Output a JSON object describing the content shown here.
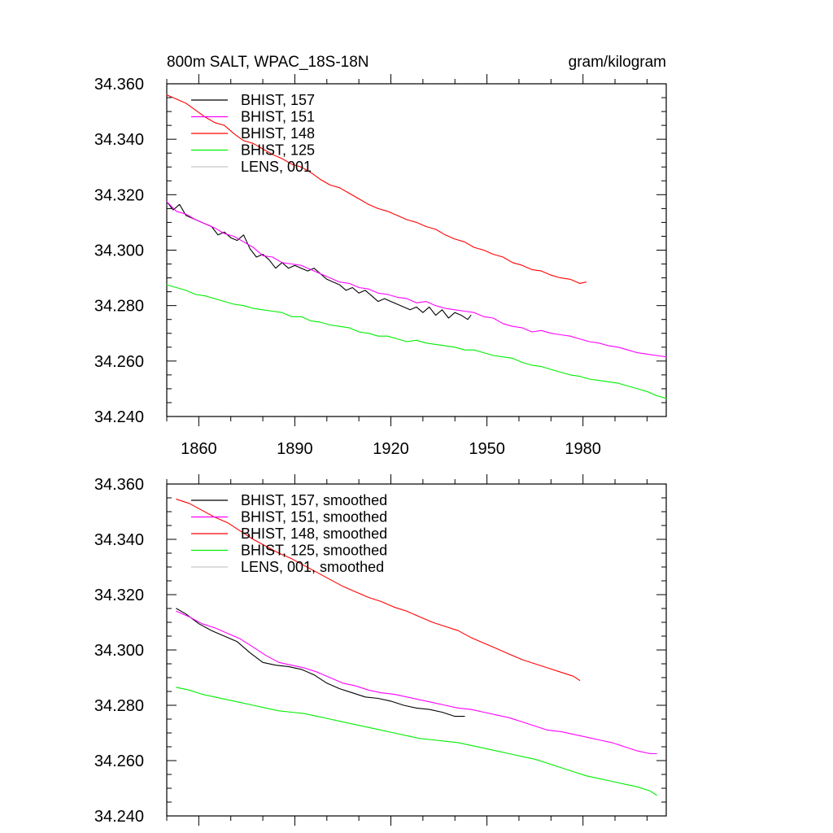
{
  "chart_data": [
    {
      "type": "line",
      "title_left": "800m SALT, WPAC_18S-18N",
      "title_right": "gram/kilogram",
      "xlabel": "",
      "ylabel": "",
      "xlim": [
        1850,
        2006
      ],
      "ylim": [
        34.24,
        34.36
      ],
      "x_ticks": [
        1860,
        1890,
        1920,
        1950,
        1980
      ],
      "y_ticks": [
        "34.240",
        "34.260",
        "34.280",
        "34.300",
        "34.320",
        "34.340",
        "34.360"
      ],
      "grid": false,
      "legend_position": "top-left",
      "series": [
        {
          "name": "BHIST, 157",
          "color": "#000000",
          "x": [
            1850,
            1852,
            1854,
            1856,
            1858,
            1860,
            1862,
            1864,
            1866,
            1868,
            1870,
            1872,
            1874,
            1876,
            1878,
            1880,
            1882,
            1884,
            1886,
            1888,
            1890,
            1892,
            1894,
            1896,
            1898,
            1900,
            1902,
            1904,
            1906,
            1908,
            1910,
            1912,
            1914,
            1916,
            1918,
            1920,
            1922,
            1924,
            1926,
            1928,
            1930,
            1932,
            1934,
            1936,
            1938,
            1940,
            1942,
            1944,
            1945
          ],
          "values": [
            34.3175,
            34.3145,
            34.3165,
            34.3125,
            34.3115,
            34.3105,
            34.3095,
            34.3085,
            34.3055,
            34.3065,
            34.3045,
            34.3035,
            34.3055,
            34.3005,
            34.2975,
            34.2985,
            34.2965,
            34.2935,
            34.2955,
            34.2935,
            34.2945,
            34.2935,
            34.2925,
            34.2935,
            34.2915,
            34.2895,
            34.2885,
            34.2875,
            34.2855,
            34.2865,
            34.2845,
            34.2855,
            34.2835,
            34.2815,
            34.2825,
            34.2815,
            34.2805,
            34.2795,
            34.2785,
            34.2795,
            34.2775,
            34.2795,
            34.2765,
            34.2785,
            34.2755,
            34.2775,
            34.2765,
            34.275,
            34.2765
          ]
        },
        {
          "name": "BHIST, 151",
          "color": "#ff00ff",
          "x": [
            1850,
            1853,
            1856,
            1859,
            1862,
            1865,
            1868,
            1871,
            1874,
            1877,
            1880,
            1883,
            1886,
            1889,
            1892,
            1895,
            1898,
            1901,
            1904,
            1907,
            1910,
            1913,
            1916,
            1919,
            1922,
            1925,
            1928,
            1931,
            1934,
            1937,
            1940,
            1943,
            1946,
            1949,
            1952,
            1955,
            1958,
            1961,
            1964,
            1967,
            1970,
            1973,
            1976,
            1979,
            1982,
            1985,
            1988,
            1991,
            1994,
            1997,
            2000,
            2003,
            2006
          ],
          "values": [
            34.3175,
            34.314,
            34.313,
            34.311,
            34.3095,
            34.308,
            34.306,
            34.305,
            34.303,
            34.301,
            34.298,
            34.2975,
            34.2955,
            34.295,
            34.2945,
            34.293,
            34.2915,
            34.29,
            34.2885,
            34.288,
            34.2865,
            34.286,
            34.2845,
            34.284,
            34.283,
            34.2825,
            34.281,
            34.2815,
            34.28,
            34.279,
            34.2785,
            34.278,
            34.2775,
            34.276,
            34.2755,
            34.2735,
            34.2725,
            34.272,
            34.2705,
            34.271,
            34.27,
            34.2695,
            34.269,
            34.268,
            34.267,
            34.2665,
            34.2655,
            34.265,
            34.264,
            34.263,
            34.2625,
            34.262,
            34.2615
          ]
        },
        {
          "name": "BHIST, 148",
          "color": "#ff0000",
          "x": [
            1850,
            1853,
            1856,
            1859,
            1862,
            1865,
            1868,
            1871,
            1874,
            1877,
            1880,
            1883,
            1886,
            1889,
            1892,
            1895,
            1898,
            1901,
            1904,
            1907,
            1910,
            1913,
            1916,
            1919,
            1922,
            1925,
            1928,
            1931,
            1934,
            1937,
            1940,
            1943,
            1946,
            1949,
            1952,
            1955,
            1958,
            1961,
            1964,
            1967,
            1970,
            1973,
            1976,
            1979,
            1981
          ],
          "values": [
            34.356,
            34.3545,
            34.353,
            34.3505,
            34.348,
            34.346,
            34.345,
            34.342,
            34.3395,
            34.3385,
            34.3365,
            34.3345,
            34.333,
            34.331,
            34.33,
            34.328,
            34.3255,
            34.3235,
            34.3225,
            34.3205,
            34.3185,
            34.3165,
            34.315,
            34.314,
            34.3125,
            34.311,
            34.31,
            34.3085,
            34.3075,
            34.3055,
            34.304,
            34.303,
            34.301,
            34.3,
            34.2985,
            34.2975,
            34.2955,
            34.2945,
            34.293,
            34.2925,
            34.291,
            34.29,
            34.2895,
            34.288,
            34.2885
          ]
        },
        {
          "name": "BHIST, 125",
          "color": "#00ee00",
          "x": [
            1850,
            1853,
            1856,
            1859,
            1862,
            1865,
            1868,
            1871,
            1874,
            1877,
            1880,
            1883,
            1886,
            1889,
            1892,
            1895,
            1898,
            1901,
            1904,
            1907,
            1910,
            1913,
            1916,
            1919,
            1922,
            1925,
            1928,
            1931,
            1934,
            1937,
            1940,
            1943,
            1946,
            1949,
            1952,
            1955,
            1958,
            1961,
            1964,
            1967,
            1970,
            1973,
            1976,
            1979,
            1982,
            1985,
            1988,
            1991,
            1994,
            1997,
            2000,
            2003,
            2006
          ],
          "values": [
            34.2875,
            34.2865,
            34.2855,
            34.284,
            34.2835,
            34.2825,
            34.2815,
            34.2805,
            34.28,
            34.279,
            34.2785,
            34.278,
            34.2775,
            34.276,
            34.276,
            34.2745,
            34.274,
            34.273,
            34.2725,
            34.272,
            34.2705,
            34.27,
            34.269,
            34.269,
            34.268,
            34.267,
            34.2675,
            34.2665,
            34.266,
            34.2655,
            34.265,
            34.264,
            34.264,
            34.263,
            34.262,
            34.2615,
            34.261,
            34.2595,
            34.2585,
            34.258,
            34.257,
            34.256,
            34.255,
            34.2545,
            34.2535,
            34.253,
            34.2525,
            34.252,
            34.251,
            34.25,
            34.249,
            34.2475,
            34.2465
          ]
        },
        {
          "name": "LENS, 001",
          "color": "#c8c8c8",
          "x": [],
          "values": []
        }
      ]
    },
    {
      "type": "line",
      "title_left": "",
      "title_right": "",
      "xlabel": "",
      "ylabel": "",
      "xlim": [
        1850,
        2006
      ],
      "ylim": [
        34.24,
        34.36
      ],
      "x_ticks": [
        1860,
        1890,
        1920,
        1950,
        1980
      ],
      "y_ticks": [
        "34.240",
        "34.260",
        "34.280",
        "34.300",
        "34.320",
        "34.340",
        "34.360"
      ],
      "grid": false,
      "legend_position": "top-left",
      "series": [
        {
          "name": "BHIST, 157, smoothed",
          "color": "#000000",
          "x": [
            1853,
            1856,
            1860,
            1864,
            1868,
            1872,
            1876,
            1880,
            1884,
            1888,
            1892,
            1896,
            1900,
            1904,
            1908,
            1912,
            1916,
            1920,
            1924,
            1928,
            1932,
            1936,
            1940,
            1943
          ],
          "values": [
            34.315,
            34.313,
            34.3095,
            34.307,
            34.305,
            34.303,
            34.299,
            34.2955,
            34.2945,
            34.294,
            34.293,
            34.291,
            34.288,
            34.286,
            34.2845,
            34.283,
            34.2825,
            34.2815,
            34.28,
            34.279,
            34.2785,
            34.2775,
            34.276,
            34.276
          ]
        },
        {
          "name": "BHIST, 151, smoothed",
          "color": "#ff00ff",
          "x": [
            1853,
            1857,
            1861,
            1865,
            1869,
            1873,
            1877,
            1881,
            1885,
            1889,
            1893,
            1897,
            1901,
            1905,
            1909,
            1913,
            1917,
            1921,
            1925,
            1929,
            1933,
            1937,
            1941,
            1945,
            1949,
            1953,
            1957,
            1961,
            1965,
            1969,
            1973,
            1977,
            1981,
            1985,
            1989,
            1993,
            1997,
            2001,
            2003
          ],
          "values": [
            34.314,
            34.312,
            34.3095,
            34.308,
            34.306,
            34.304,
            34.301,
            34.298,
            34.2955,
            34.2945,
            34.2935,
            34.292,
            34.29,
            34.288,
            34.287,
            34.2855,
            34.2845,
            34.284,
            34.283,
            34.282,
            34.281,
            34.28,
            34.279,
            34.2785,
            34.2775,
            34.2765,
            34.2755,
            34.274,
            34.2725,
            34.271,
            34.2705,
            34.2695,
            34.2685,
            34.2675,
            34.2665,
            34.265,
            34.2635,
            34.2625,
            34.2625
          ]
        },
        {
          "name": "BHIST, 148, smoothed",
          "color": "#ff0000",
          "x": [
            1853,
            1857,
            1861,
            1865,
            1869,
            1873,
            1877,
            1881,
            1885,
            1889,
            1893,
            1897,
            1901,
            1905,
            1909,
            1913,
            1917,
            1921,
            1925,
            1929,
            1933,
            1937,
            1941,
            1945,
            1949,
            1953,
            1957,
            1961,
            1965,
            1969,
            1973,
            1977,
            1979
          ],
          "values": [
            34.3545,
            34.353,
            34.3505,
            34.348,
            34.346,
            34.343,
            34.34,
            34.3375,
            34.335,
            34.333,
            34.3305,
            34.328,
            34.3255,
            34.323,
            34.321,
            34.319,
            34.3175,
            34.3155,
            34.314,
            34.312,
            34.31,
            34.3085,
            34.307,
            34.3045,
            34.3025,
            34.3005,
            34.2985,
            34.2965,
            34.295,
            34.2935,
            34.292,
            34.2905,
            34.289
          ]
        },
        {
          "name": "BHIST, 125, smoothed",
          "color": "#00ee00",
          "x": [
            1853,
            1857,
            1861,
            1865,
            1869,
            1873,
            1877,
            1881,
            1885,
            1889,
            1893,
            1897,
            1901,
            1905,
            1909,
            1913,
            1917,
            1921,
            1925,
            1929,
            1933,
            1937,
            1941,
            1945,
            1949,
            1953,
            1957,
            1961,
            1965,
            1969,
            1973,
            1977,
            1981,
            1985,
            1989,
            1993,
            1997,
            2001,
            2003
          ],
          "values": [
            34.2865,
            34.2855,
            34.284,
            34.283,
            34.282,
            34.281,
            34.28,
            34.279,
            34.278,
            34.2775,
            34.277,
            34.276,
            34.275,
            34.274,
            34.273,
            34.272,
            34.271,
            34.27,
            34.269,
            34.268,
            34.2675,
            34.267,
            34.2665,
            34.2655,
            34.2645,
            34.2635,
            34.2625,
            34.2615,
            34.2605,
            34.259,
            34.2575,
            34.256,
            34.2545,
            34.2535,
            34.2525,
            34.2515,
            34.2505,
            34.249,
            34.2475
          ]
        },
        {
          "name": "LENS, 001, smoothed",
          "color": "#c8c8c8",
          "x": [],
          "values": []
        }
      ]
    }
  ]
}
